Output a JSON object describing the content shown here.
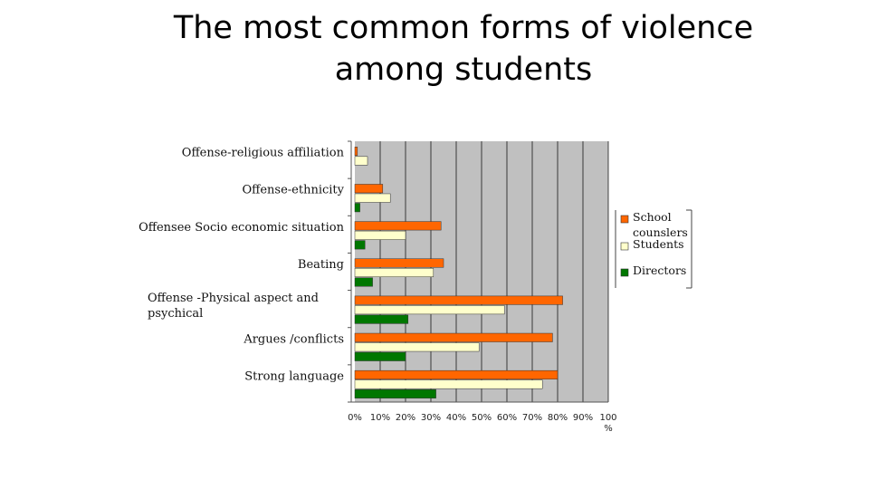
{
  "slide": {
    "title_line1": "The most common forms of violence",
    "title_line2": "among students"
  },
  "colors": {
    "plot_background": "#c0c0c0",
    "school_counselors": "#ff6600",
    "students": "#ffffcc",
    "directors": "#007700",
    "gridline": "#000000"
  },
  "chart_data": {
    "type": "bar",
    "orientation": "horizontal",
    "title": "",
    "xlabel": "%",
    "ylabel": "",
    "xlim": [
      0,
      100
    ],
    "x_ticks": [
      "0%",
      "10%",
      "20%",
      "30%",
      "40%",
      "50%",
      "60%",
      "70%",
      "80%",
      "90%",
      "100"
    ],
    "grid": true,
    "legend_position": "right",
    "categories": [
      [
        "Offense-religious affiliation"
      ],
      [
        "Offense-ethnicity"
      ],
      [
        "Offensee Socio economic situation"
      ],
      [
        "Beating"
      ],
      [
        "Offense -Physical aspect and",
        "psychical"
      ],
      [
        "Argues /conflicts"
      ],
      [
        "Strong language"
      ]
    ],
    "series": [
      {
        "name": "School counslers",
        "legend_lines": [
          "School",
          "counslers"
        ],
        "values": [
          1,
          11,
          34,
          35,
          82,
          78,
          80
        ]
      },
      {
        "name": "Students",
        "legend_lines": [
          "Students"
        ],
        "values": [
          5,
          14,
          20,
          31,
          59,
          49,
          74
        ]
      },
      {
        "name": "Directors",
        "legend_lines": [
          "Directors"
        ],
        "values": [
          0,
          2,
          4,
          7,
          21,
          20,
          32
        ]
      }
    ]
  }
}
